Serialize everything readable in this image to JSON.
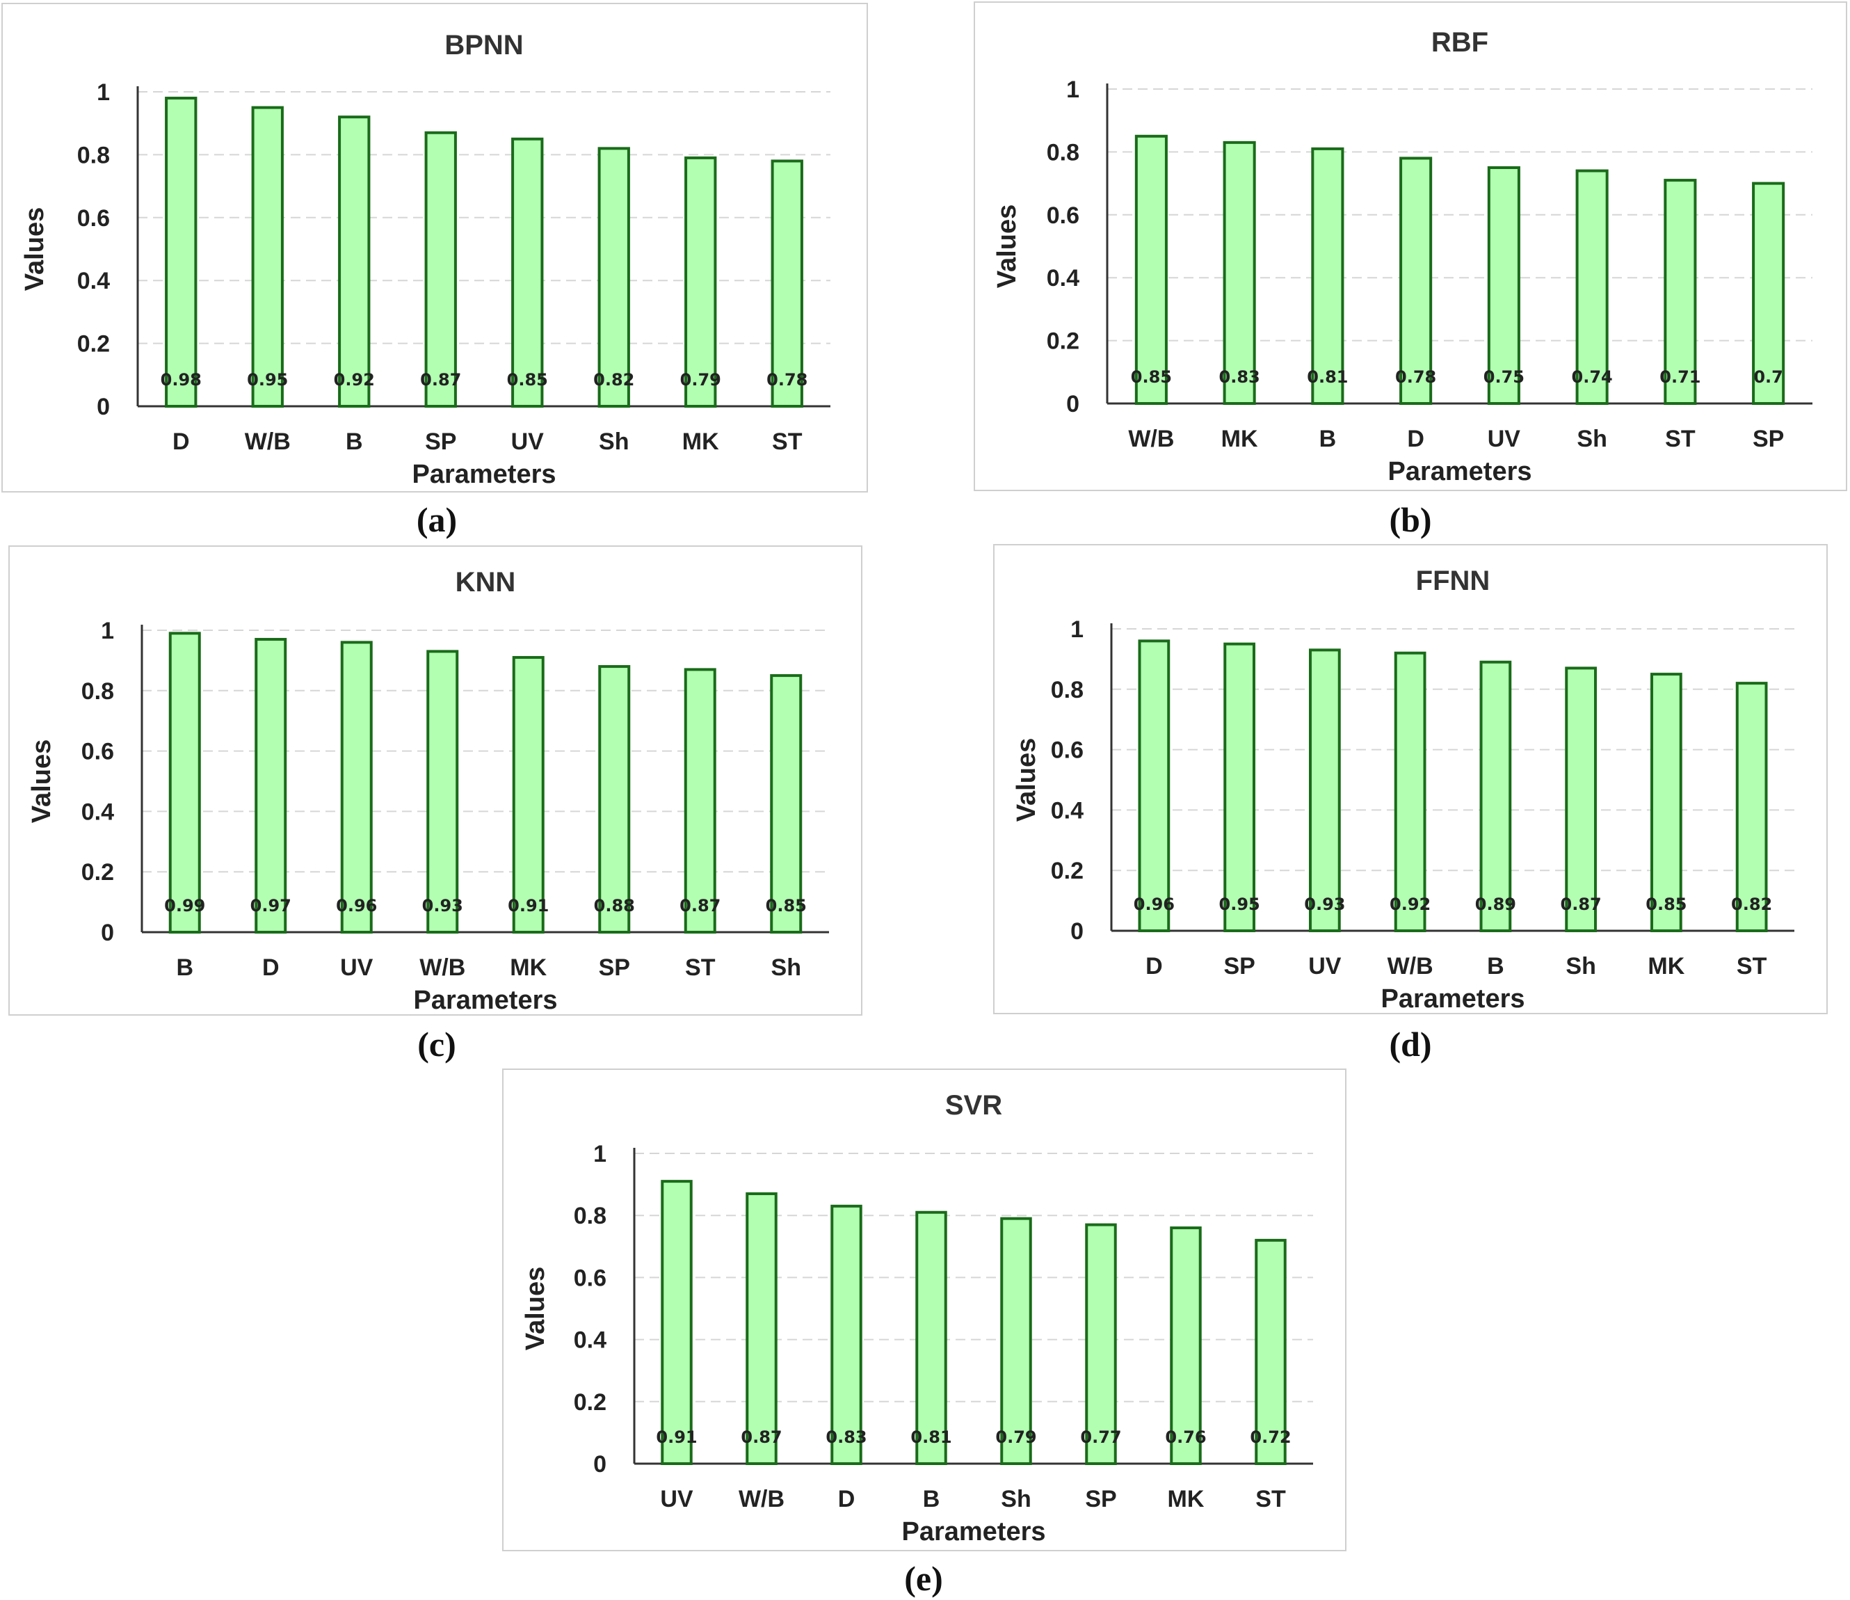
{
  "chart_data": [
    {
      "id": "a",
      "type": "bar",
      "title": "BPNN",
      "caption": "(a)",
      "xlabel": "Parameters",
      "ylabel": "Values",
      "ylim": [
        0,
        1
      ],
      "yticks": [
        "0",
        "0.2",
        "0.4",
        "0.6",
        "0.8",
        "1"
      ],
      "categories": [
        "D",
        "W/B",
        "B",
        "SP",
        "UV",
        "Sh",
        "MK",
        "ST"
      ],
      "values": [
        0.98,
        0.95,
        0.92,
        0.87,
        0.85,
        0.82,
        0.79,
        0.78
      ],
      "value_labels": [
        "0.98",
        "0.95",
        "0.92",
        "0.87",
        "0.85",
        "0.82",
        "0.79",
        "0.78"
      ]
    },
    {
      "id": "b",
      "type": "bar",
      "title": "RBF",
      "caption": "(b)",
      "xlabel": "Parameters",
      "ylabel": "Values",
      "ylim": [
        0,
        1
      ],
      "yticks": [
        "0",
        "0.2",
        "0.4",
        "0.6",
        "0.8",
        "1"
      ],
      "categories": [
        "W/B",
        "MK",
        "B",
        "D",
        "UV",
        "Sh",
        "ST",
        "SP"
      ],
      "values": [
        0.85,
        0.83,
        0.81,
        0.78,
        0.75,
        0.74,
        0.71,
        0.7
      ],
      "value_labels": [
        "0.85",
        "0.83",
        "0.81",
        "0.78",
        "0.75",
        "0.74",
        "0.71",
        "0.7"
      ]
    },
    {
      "id": "c",
      "type": "bar",
      "title": "KNN",
      "caption": "(c)",
      "xlabel": "Parameters",
      "ylabel": "Values",
      "ylim": [
        0,
        1
      ],
      "yticks": [
        "0",
        "0.2",
        "0.4",
        "0.6",
        "0.8",
        "1"
      ],
      "categories": [
        "B",
        "D",
        "UV",
        "W/B",
        "MK",
        "SP",
        "ST",
        "Sh"
      ],
      "values": [
        0.99,
        0.97,
        0.96,
        0.93,
        0.91,
        0.88,
        0.87,
        0.85
      ],
      "value_labels": [
        "0.99",
        "0.97",
        "0.96",
        "0.93",
        "0.91",
        "0.88",
        "0.87",
        "0.85"
      ]
    },
    {
      "id": "d",
      "type": "bar",
      "title": "FFNN",
      "caption": "(d)",
      "xlabel": "Parameters",
      "ylabel": "Values",
      "ylim": [
        0,
        1
      ],
      "yticks": [
        "0",
        "0.2",
        "0.4",
        "0.6",
        "0.8",
        "1"
      ],
      "categories": [
        "D",
        "SP",
        "UV",
        "W/B",
        "B",
        "Sh",
        "MK",
        "ST"
      ],
      "values": [
        0.96,
        0.95,
        0.93,
        0.92,
        0.89,
        0.87,
        0.85,
        0.82
      ],
      "value_labels": [
        "0.96",
        "0.95",
        "0.93",
        "0.92",
        "0.89",
        "0.87",
        "0.85",
        "0.82"
      ]
    },
    {
      "id": "e",
      "type": "bar",
      "title": "SVR",
      "caption": "(e)",
      "xlabel": "Parameters",
      "ylabel": "Values",
      "ylim": [
        0,
        1
      ],
      "yticks": [
        "0",
        "0.2",
        "0.4",
        "0.6",
        "0.8",
        "1"
      ],
      "categories": [
        "UV",
        "W/B",
        "D",
        "B",
        "Sh",
        "SP",
        "MK",
        "ST"
      ],
      "values": [
        0.91,
        0.87,
        0.83,
        0.81,
        0.79,
        0.77,
        0.76,
        0.72
      ],
      "value_labels": [
        "0.91",
        "0.87",
        "0.83",
        "0.81",
        "0.79",
        "0.77",
        "0.76",
        "0.72"
      ]
    }
  ],
  "colors": {
    "bar_fill": "#b2ffb2",
    "bar_stroke": "#1a6b1a",
    "grid": "#d6d6d6"
  }
}
